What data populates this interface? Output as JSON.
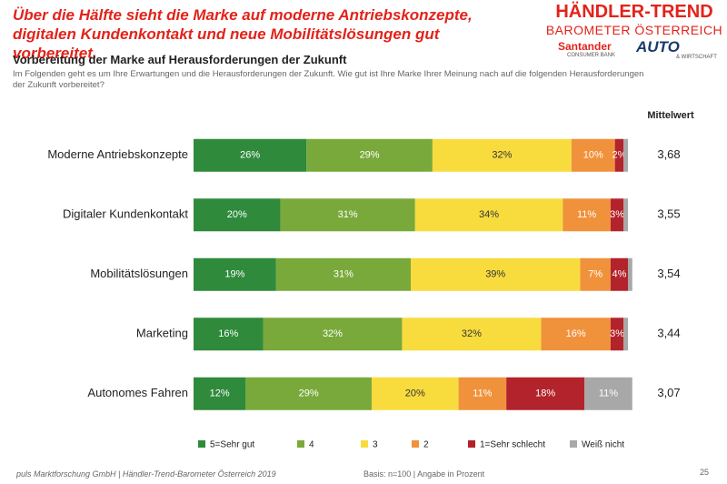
{
  "header": {
    "headline": "Über die Hälfte sieht die Marke auf moderne Antriebskonzepte, digitalen Kundenkontakt und neue Mobilitätslösungen gut vorbereitet.",
    "logo_title": "HÄNDLER-TREND",
    "logo_subtitle": "BAROMETER ÖSTERREICH",
    "sponsor": "Santander",
    "sponsor_sub": "CONSUMER BANK",
    "partner": "AUTO",
    "partner_sub": "& WIRTSCHAFT"
  },
  "chart_data": {
    "type": "stacked-bar-horizontal",
    "title": "Vorbereitung der Marke auf Herausforderungen der Zukunft",
    "subtitle": "Im Folgenden geht es um Ihre Erwartungen und die Herausforderungen der Zukunft. Wie gut ist Ihre Marke Ihrer Meinung nach auf die folgenden Herausforderungen der Zukunft vorbereitet?",
    "categories": [
      "Moderne Antriebskonzepte",
      "Digitaler Kundenkontakt",
      "Mobilitätslösungen",
      "Marketing",
      "Autonomes Fahren"
    ],
    "xlim": [
      0,
      100
    ],
    "series": [
      {
        "name": "5=Sehr gut",
        "color": "#2f8a3c",
        "label_color": "#ffffff",
        "values": [
          26,
          20,
          19,
          16,
          12
        ],
        "value_labels": [
          "26%",
          "20%",
          "19%",
          "16%",
          "12%"
        ]
      },
      {
        "name": "4",
        "color": "#79a93a",
        "label_color": "#ffffff",
        "values": [
          29,
          31,
          31,
          32,
          29
        ],
        "value_labels": [
          "29%",
          "31%",
          "31%",
          "32%",
          "29%"
        ]
      },
      {
        "name": "3",
        "color": "#f8dc3e",
        "label_color": "#333333",
        "values": [
          32,
          34,
          39,
          32,
          20
        ],
        "value_labels": [
          "32%",
          "34%",
          "39%",
          "32%",
          "20%"
        ]
      },
      {
        "name": "2",
        "color": "#f0923b",
        "label_color": "#ffffff",
        "values": [
          10,
          11,
          7,
          16,
          11
        ],
        "value_labels": [
          "10%",
          "11%",
          "7%",
          "16%",
          "11%"
        ]
      },
      {
        "name": "1=Sehr schlecht",
        "color": "#b3232b",
        "label_color": "#ffffff",
        "values": [
          2,
          3,
          4,
          3,
          18
        ],
        "value_labels": [
          "2%",
          "3%",
          "4%",
          "3%",
          "18%"
        ]
      },
      {
        "name": "Weiß nicht",
        "color": "#a8a8a8",
        "label_color": "#ffffff",
        "values": [
          1,
          1,
          1,
          1,
          11
        ],
        "value_labels": [
          null,
          null,
          null,
          null,
          "11%"
        ]
      }
    ],
    "mean_label": "Mittelwert",
    "means": [
      "3,68",
      "3,55",
      "3,54",
      "3,44",
      "3,07"
    ]
  },
  "footer": {
    "source": "puls Marktforschung GmbH | Händler-Trend-Barometer Österreich 2019",
    "basis": "Basis: n=100 | Angabe in Prozent",
    "page": "25"
  }
}
